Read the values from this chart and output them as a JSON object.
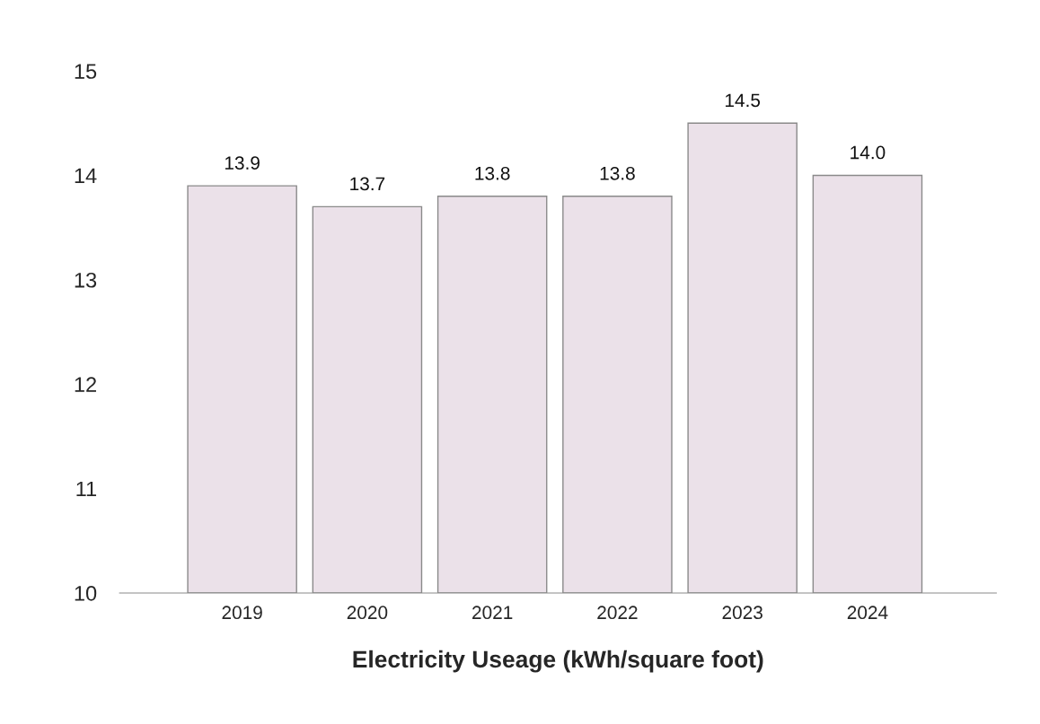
{
  "chart_data": {
    "type": "bar",
    "xlabel": "Electricity Useage (kWh/square foot)",
    "categories": [
      "2019",
      "2020",
      "2021",
      "2022",
      "2023",
      "2024"
    ],
    "values": [
      13.9,
      13.7,
      13.8,
      13.8,
      14.5,
      14.0
    ],
    "color": "#ebe1e9",
    "ylim": [
      10,
      15
    ],
    "yticks": [
      10,
      11,
      12,
      13,
      14,
      15
    ],
    "grid": false,
    "value_labels": [
      "13.9",
      "13.7",
      "13.8",
      "13.8",
      "14.5",
      "14.0"
    ]
  }
}
